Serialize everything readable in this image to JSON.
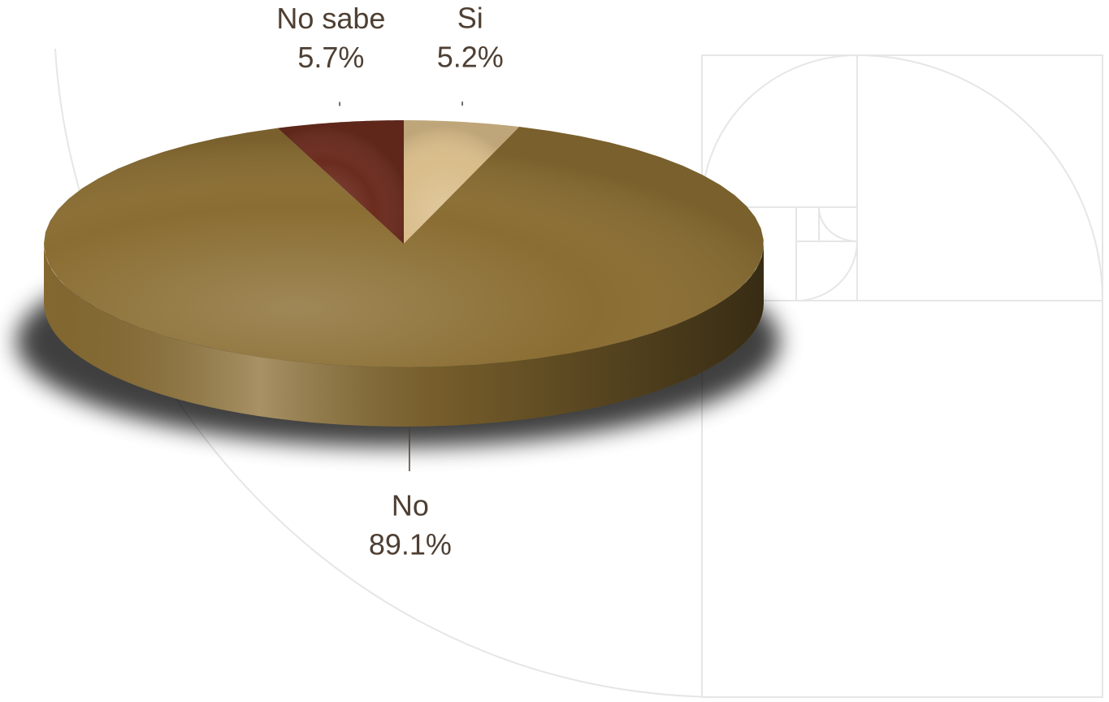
{
  "chart_data": {
    "type": "pie",
    "categories": [
      "Si",
      "No",
      "No sabe"
    ],
    "values": [
      5.2,
      89.1,
      5.7
    ],
    "value_labels": [
      "5.2%",
      "89.1%",
      "5.7%"
    ],
    "colors": [
      "#d9bd8a",
      "#8a6d32",
      "#6b2c1e"
    ]
  }
}
